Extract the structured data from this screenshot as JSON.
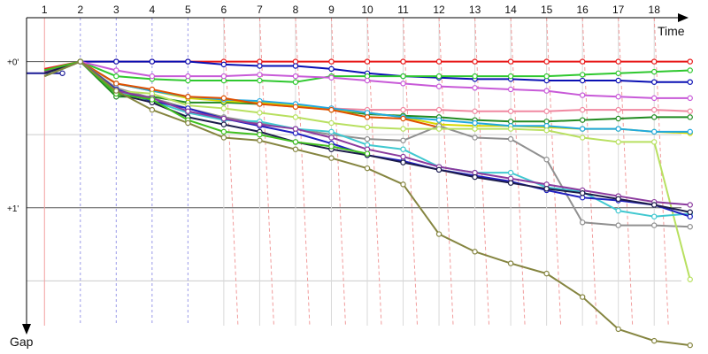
{
  "chart_data": {
    "type": "line",
    "x_axis_label": "Time",
    "y_axis_label": "Gap",
    "x_ticks": [
      "1",
      "2",
      "3",
      "4",
      "5",
      "6",
      "7",
      "8",
      "9",
      "10",
      "11",
      "12",
      "13",
      "14",
      "15",
      "16",
      "17",
      "18"
    ],
    "y_ticks": [
      {
        "label": "+0'",
        "value": 0
      },
      {
        "label": "+1'",
        "value": 1
      }
    ],
    "y_minor_ticks": [
      0.5,
      1.5
    ],
    "x_range": [
      0.5,
      19.5
    ],
    "y_range": [
      -0.3,
      2.0
    ],
    "grid": true,
    "legend": "none",
    "colors": {
      "axis": "#000000",
      "major_grid": "#555555",
      "minor_grid": "#cccccc",
      "vertical_grid_first": "#f3a0a0",
      "vertical_grid_dash_blue": "#9a9ae8",
      "vertical_grid_dash_red": "#f19c9c",
      "vertical_grid_plain": "#d9d9d9"
    },
    "series": [
      {
        "color": "#e81818",
        "x": [
          1,
          2,
          3,
          4,
          5,
          6,
          7,
          8,
          9,
          10,
          11,
          12,
          13,
          14,
          15,
          16,
          17,
          18,
          19
        ],
        "y": [
          0.05,
          0,
          0,
          0,
          0,
          0,
          0,
          0,
          0,
          0,
          0,
          0,
          0,
          0,
          0,
          0,
          0,
          0,
          0
        ]
      },
      {
        "color": "#0a10b4",
        "x": [
          1,
          2,
          3,
          4,
          5,
          6,
          7,
          8,
          9,
          10,
          11,
          12,
          13,
          14,
          15,
          16,
          17,
          18,
          19
        ],
        "y": [
          0.08,
          0,
          0,
          0,
          0,
          0.02,
          0.03,
          0.03,
          0.05,
          0.08,
          0.1,
          0.11,
          0.12,
          0.12,
          0.13,
          0.13,
          0.13,
          0.14,
          0.14
        ]
      },
      {
        "color": "#2fc82f",
        "x": [
          1,
          2,
          3,
          4,
          5,
          6,
          7,
          8,
          9,
          10,
          11,
          12,
          13,
          14,
          15,
          16,
          17,
          18,
          19
        ],
        "y": [
          0.06,
          0,
          0.1,
          0.12,
          0.13,
          0.13,
          0.13,
          0.14,
          0.1,
          0.1,
          0.1,
          0.1,
          0.1,
          0.1,
          0.1,
          0.09,
          0.08,
          0.07,
          0.06
        ]
      },
      {
        "color": "#c85ad8",
        "x": [
          1,
          2,
          3,
          4,
          5,
          6,
          7,
          8,
          9,
          10,
          11,
          12,
          13,
          14,
          15,
          16,
          17,
          18,
          19
        ],
        "y": [
          0.07,
          0,
          0.06,
          0.1,
          0.1,
          0.1,
          0.09,
          0.1,
          0.11,
          0.13,
          0.15,
          0.17,
          0.18,
          0.19,
          0.2,
          0.23,
          0.24,
          0.25,
          0.25
        ]
      },
      {
        "color": "#1a1a96",
        "x": [
          0.5,
          1.5
        ],
        "y": [
          0.08,
          0.08
        ]
      },
      {
        "color": "#f088a0",
        "x": [
          1,
          2,
          3,
          4,
          5,
          6,
          7,
          8,
          9,
          10,
          11,
          12,
          13,
          14,
          15,
          16,
          17,
          18,
          19
        ],
        "y": [
          0.1,
          0,
          0.15,
          0.2,
          0.24,
          0.27,
          0.29,
          0.31,
          0.32,
          0.33,
          0.33,
          0.33,
          0.34,
          0.34,
          0.34,
          0.33,
          0.33,
          0.33,
          0.34
        ]
      },
      {
        "color": "#228b22",
        "x": [
          1,
          2,
          3,
          4,
          5,
          6,
          7,
          8,
          9,
          10,
          11,
          12,
          13,
          14,
          15,
          16,
          17,
          18,
          19
        ],
        "y": [
          0.1,
          0,
          0.24,
          0.24,
          0.28,
          0.28,
          0.29,
          0.3,
          0.33,
          0.36,
          0.37,
          0.38,
          0.4,
          0.41,
          0.41,
          0.4,
          0.39,
          0.38,
          0.38
        ]
      },
      {
        "color": "#d8d800",
        "x": [
          1,
          2,
          3,
          4,
          5,
          6,
          7,
          8,
          9,
          10,
          11,
          12,
          13,
          14,
          15,
          16,
          17,
          18,
          19
        ],
        "y": [
          0.1,
          0,
          0.15,
          0.2,
          0.25,
          0.27,
          0.28,
          0.3,
          0.33,
          0.35,
          0.38,
          0.43,
          0.44,
          0.44,
          0.45,
          0.46,
          0.46,
          0.48,
          0.49
        ]
      },
      {
        "color": "#20a8e0",
        "x": [
          1,
          2,
          3,
          4,
          5,
          6,
          7,
          8,
          9,
          10,
          11,
          12,
          13,
          14,
          15,
          16,
          17,
          18,
          19
        ],
        "y": [
          0.1,
          0,
          0.15,
          0.2,
          0.24,
          0.26,
          0.27,
          0.29,
          0.32,
          0.35,
          0.38,
          0.4,
          0.42,
          0.44,
          0.44,
          0.46,
          0.46,
          0.48,
          0.48
        ]
      },
      {
        "color": "#e05000",
        "x": [
          1,
          2,
          3,
          4,
          5,
          6,
          7,
          8,
          9,
          10,
          11,
          12
        ],
        "y": [
          0.1,
          0,
          0.15,
          0.19,
          0.24,
          0.25,
          0.29,
          0.31,
          0.33,
          0.38,
          0.39,
          0.45
        ]
      },
      {
        "color": "#909090",
        "x": [
          1,
          2,
          3,
          4,
          5,
          6,
          7,
          8,
          9,
          10,
          11,
          12,
          13,
          14,
          15,
          16,
          17,
          18,
          19
        ],
        "y": [
          0.08,
          0,
          0.18,
          0.25,
          0.32,
          0.38,
          0.42,
          0.46,
          0.5,
          0.53,
          0.54,
          0.44,
          0.52,
          0.53,
          0.67,
          1.1,
          1.12,
          1.12,
          1.13
        ]
      },
      {
        "color": "#b8e060",
        "x": [
          1,
          2,
          3,
          4,
          5,
          6,
          7,
          8,
          9,
          10,
          11,
          12,
          13,
          14,
          15,
          16,
          17,
          18,
          19
        ],
        "y": [
          0.1,
          0,
          0.2,
          0.22,
          0.3,
          0.32,
          0.35,
          0.38,
          0.42,
          0.45,
          0.46,
          0.46,
          0.46,
          0.46,
          0.47,
          0.52,
          0.55,
          0.55,
          1.49
        ]
      },
      {
        "color": "#40c8d0",
        "x": [
          1,
          2,
          3,
          4,
          5,
          6,
          7,
          8,
          9,
          10,
          11,
          12,
          13,
          14,
          15,
          16,
          17,
          18,
          19
        ],
        "y": [
          0.1,
          0,
          0.2,
          0.27,
          0.35,
          0.4,
          0.41,
          0.46,
          0.48,
          0.57,
          0.6,
          0.72,
          0.76,
          0.76,
          0.86,
          0.89,
          1.02,
          1.06,
          1.04
        ]
      },
      {
        "color": "#2020c0",
        "x": [
          1,
          2,
          3,
          4,
          5,
          6,
          7,
          8,
          9,
          10,
          11,
          12,
          13,
          14,
          15,
          16,
          17,
          18,
          19
        ],
        "y": [
          0.08,
          0,
          0.19,
          0.27,
          0.32,
          0.39,
          0.44,
          0.49,
          0.56,
          0.64,
          0.68,
          0.74,
          0.78,
          0.82,
          0.88,
          0.93,
          0.95,
          0.98,
          1.06
        ]
      },
      {
        "color": "#8b3a9e",
        "x": [
          1,
          2,
          3,
          4,
          5,
          6,
          7,
          8,
          9,
          10,
          11,
          12,
          13,
          14,
          15,
          16,
          17,
          18,
          19
        ],
        "y": [
          0.07,
          0,
          0.2,
          0.25,
          0.34,
          0.39,
          0.43,
          0.46,
          0.52,
          0.6,
          0.65,
          0.72,
          0.76,
          0.8,
          0.84,
          0.88,
          0.92,
          0.96,
          0.98
        ]
      },
      {
        "color": "#1c1c4a",
        "x": [
          1,
          2,
          3,
          4,
          5,
          6,
          7,
          8,
          9,
          10,
          11,
          12,
          13,
          14,
          15,
          16,
          17,
          18,
          19
        ],
        "y": [
          0.08,
          0,
          0.22,
          0.28,
          0.38,
          0.43,
          0.48,
          0.55,
          0.6,
          0.64,
          0.69,
          0.74,
          0.79,
          0.83,
          0.87,
          0.9,
          0.94,
          0.98,
          1.03
        ]
      },
      {
        "color": "#40c020",
        "x": [
          1,
          2,
          3,
          4,
          5,
          6,
          7,
          8,
          9,
          10
        ],
        "y": [
          0.06,
          0,
          0.22,
          0.26,
          0.4,
          0.48,
          0.5,
          0.55,
          0.58,
          0.63
        ]
      },
      {
        "color": "#858540",
        "x": [
          1,
          2,
          3,
          4,
          5,
          6,
          7,
          8,
          9,
          10,
          11,
          12,
          13,
          14,
          15,
          16,
          17,
          18,
          19
        ],
        "y": [
          0.1,
          0,
          0.2,
          0.33,
          0.42,
          0.52,
          0.54,
          0.6,
          0.66,
          0.73,
          0.84,
          1.18,
          1.3,
          1.38,
          1.45,
          1.61,
          1.83,
          1.91,
          1.94
        ]
      }
    ]
  }
}
